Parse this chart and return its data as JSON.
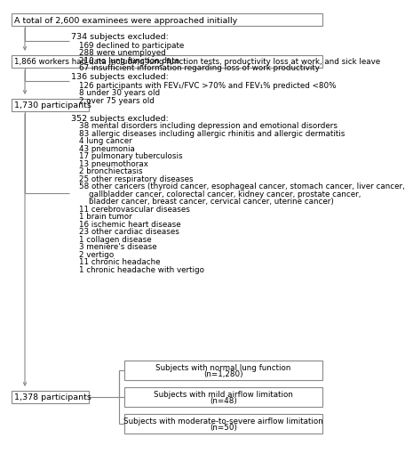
{
  "box1": "A total of 2,600 examinees were approached initially",
  "box2": "1,866 workers had data including lung function tests, productivity loss at work, and sick leave",
  "box3": "1,730 participants",
  "box4": "1,378 participants",
  "box5_line1": "Subjects with normal lung function",
  "box5_line2": "(n=1,280)",
  "box6_line1": "Subjects with mild airflow limitation",
  "box6_line2": "(n=48)",
  "box7_line1": "Subjects with moderate-to-severe airflow limitation",
  "box7_line2": "(n=50)",
  "excl1_head": "734 subjects excluded:",
  "excl1_items": [
    "169 declined to participate",
    "288 were unemployed",
    "210 no lung function data",
    "67 insufficient information regarding loss of work productivity"
  ],
  "excl2_head": "136 subjects excluded:",
  "excl2_items": [
    "126 participants with FEV₁/FVC >70% and FEV₁% predicted <80%",
    "8 under 30 years old",
    "2 over 75 years old"
  ],
  "excl3_head": "352 subjects excluded:",
  "excl3_items": [
    "38 mental disorders including depression and emotional disorders",
    "83 allergic diseases including allergic rhinitis and allergic dermatitis",
    "4 lung cancer",
    "43 pneumonia",
    "17 pulmonary tuberculosis",
    "13 pneumothorax",
    "2 bronchiectasis",
    "25 other respiratory diseases",
    "58 other cancers (thyroid cancer, esophageal cancer, stomach cancer, liver cancer,",
    "    gallbladder cancer, colorectal cancer, kidney cancer, prostate cancer,",
    "    bladder cancer, breast cancer, cervical cancer, uterine cancer)",
    "11 cerebrovascular diseases",
    "1 brain tumor",
    "16 ischemic heart disease",
    "23 other cardiac diseases",
    "1 collagen disease",
    "3 meniere's disease",
    "2 vertigo",
    "11 chronic headache",
    "1 chronic headache with vertigo"
  ],
  "bg_color": "#ffffff",
  "box_edge_color": "#888888",
  "text_color": "#000000",
  "line_color": "#888888",
  "fs_main": 6.8,
  "fs_small": 6.3
}
